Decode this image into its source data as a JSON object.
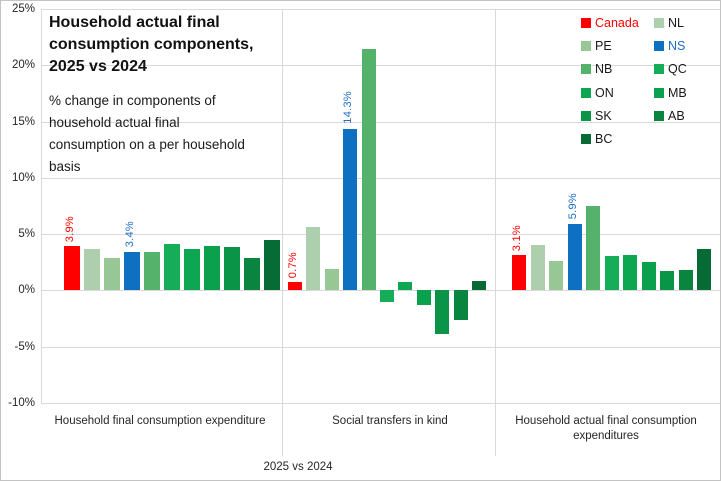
{
  "chart_data": {
    "type": "bar",
    "title": "Household actual final consumption components, 2025 vs 2024",
    "subtitle": "% change in components of household actual final consumption on a per household basis",
    "axis_title": "2025 vs 2024",
    "unit": "%",
    "categories": [
      "Household final consumption expenditure",
      "Social transfers in kind",
      "Household actual final consumption expenditures"
    ],
    "series": [
      {
        "name": "Canada",
        "color": "#ff0000",
        "text_color": "#ff0000",
        "values": [
          3.9,
          0.7,
          3.1
        ]
      },
      {
        "name": "NL",
        "color": "#aecfae",
        "values": [
          3.6,
          5.6,
          4.0
        ]
      },
      {
        "name": "PE",
        "color": "#97c795",
        "values": [
          2.8,
          1.9,
          2.6
        ]
      },
      {
        "name": "NS",
        "color": "#0e70c0",
        "text_color": "#1f6fc5",
        "values": [
          3.4,
          14.3,
          5.9
        ]
      },
      {
        "name": "NB",
        "color": "#55b26b",
        "values": [
          3.4,
          21.4,
          7.5
        ]
      },
      {
        "name": "QC",
        "color": "#15ad57",
        "values": [
          4.1,
          -1.1,
          3.0
        ]
      },
      {
        "name": "ON",
        "color": "#0ca750",
        "values": [
          3.6,
          0.7,
          3.1
        ]
      },
      {
        "name": "MB",
        "color": "#0aa04c",
        "values": [
          3.9,
          -1.3,
          2.5
        ]
      },
      {
        "name": "SK",
        "color": "#0a9447",
        "values": [
          3.8,
          -3.9,
          1.7
        ]
      },
      {
        "name": "AB",
        "color": "#0a8540",
        "values": [
          2.8,
          -2.7,
          1.8
        ]
      },
      {
        "name": "BC",
        "color": "#076b36",
        "values": [
          4.4,
          0.8,
          3.6
        ]
      }
    ],
    "data_labels": [
      {
        "series": "Canada",
        "category_index": 0,
        "text": "3.9%"
      },
      {
        "series": "NS",
        "category_index": 0,
        "text": "3.4%"
      },
      {
        "series": "Canada",
        "category_index": 1,
        "text": "0.7%"
      },
      {
        "series": "NS",
        "category_index": 1,
        "text": "14.3%"
      },
      {
        "series": "Canada",
        "category_index": 2,
        "text": "3.1%"
      },
      {
        "series": "NS",
        "category_index": 2,
        "text": "5.9%"
      }
    ],
    "y_axis": {
      "min": -10,
      "max": 25,
      "step": 5,
      "tick_labels": [
        "25%",
        "20%",
        "15%",
        "10%",
        "5%",
        "0%",
        "-5%",
        "-10%"
      ]
    },
    "legend": {
      "columns": [
        [
          "Canada",
          "PE",
          "NB",
          "ON",
          "SK",
          "BC"
        ],
        [
          "NL",
          "NS",
          "QC",
          "MB",
          "AB"
        ]
      ]
    },
    "grid": true
  },
  "colors": {
    "gridline": "#d9d9d9",
    "border": "#c3c3c3",
    "text": "#262626"
  }
}
